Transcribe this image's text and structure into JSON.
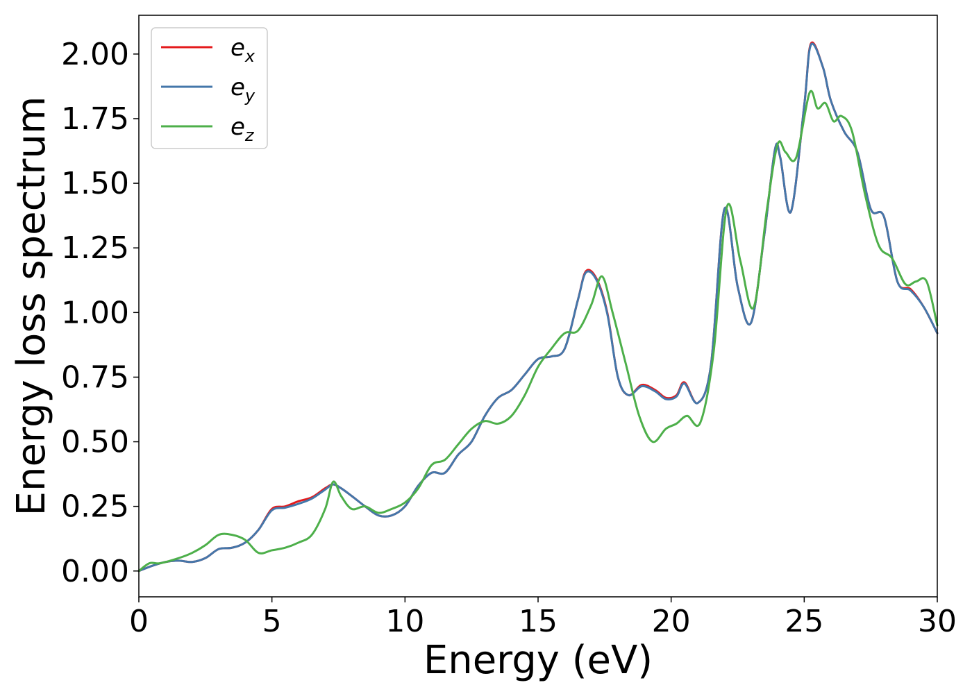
{
  "chart_data": {
    "type": "line",
    "title": "",
    "xlabel": "Energy (eV)",
    "ylabel": "Energy loss spectrum",
    "xlim": [
      0,
      30
    ],
    "ylim": [
      -0.1,
      2.15
    ],
    "xticks": [
      0,
      5,
      10,
      15,
      20,
      25,
      30
    ],
    "xtick_labels": [
      "0",
      "5",
      "10",
      "15",
      "20",
      "25",
      "30"
    ],
    "yticks": [
      0.0,
      0.25,
      0.5,
      0.75,
      1.0,
      1.25,
      1.5,
      1.75,
      2.0
    ],
    "ytick_labels": [
      "0.00",
      "0.25",
      "0.50",
      "0.75",
      "1.00",
      "1.25",
      "1.50",
      "1.75",
      "2.00"
    ],
    "grid": false,
    "legend_position": "top-left",
    "series": [
      {
        "name": "e_x",
        "legend_base": "e",
        "legend_sub": "x",
        "color": "#e41a1c",
        "x": [
          0,
          0.5,
          1,
          1.5,
          2,
          2.5,
          3,
          3.5,
          4,
          4.5,
          5,
          5.5,
          6,
          6.5,
          7,
          7.3,
          7.6,
          8,
          8.5,
          9,
          9.5,
          10,
          10.5,
          11,
          11.5,
          12,
          12.5,
          13,
          13.5,
          14,
          14.5,
          15,
          15.5,
          16,
          16.5,
          16.8,
          17.2,
          17.6,
          18,
          18.4,
          18.9,
          19.4,
          19.8,
          20.2,
          20.5,
          21,
          21.5,
          22,
          22.5,
          23,
          23.5,
          23.9,
          24.1,
          24.5,
          25,
          25.25,
          25.7,
          26,
          26.5,
          27,
          27.5,
          28,
          28.5,
          29,
          29.5,
          30
        ],
        "y": [
          0.0,
          0.02,
          0.035,
          0.04,
          0.035,
          0.05,
          0.085,
          0.09,
          0.11,
          0.16,
          0.24,
          0.25,
          0.27,
          0.285,
          0.32,
          0.335,
          0.32,
          0.29,
          0.25,
          0.215,
          0.215,
          0.25,
          0.33,
          0.38,
          0.38,
          0.45,
          0.5,
          0.6,
          0.67,
          0.7,
          0.76,
          0.82,
          0.83,
          0.86,
          1.05,
          1.16,
          1.13,
          1.0,
          0.75,
          0.68,
          0.72,
          0.7,
          0.67,
          0.68,
          0.73,
          0.65,
          0.8,
          1.4,
          1.1,
          0.96,
          1.3,
          1.63,
          1.6,
          1.39,
          1.8,
          2.04,
          1.95,
          1.82,
          1.7,
          1.62,
          1.4,
          1.37,
          1.12,
          1.09,
          1.02,
          0.92
        ]
      },
      {
        "name": "e_y",
        "legend_base": "e",
        "legend_sub": "y",
        "color": "#4477aa",
        "x": [
          0,
          0.5,
          1,
          1.5,
          2,
          2.5,
          3,
          3.5,
          4,
          4.5,
          5,
          5.5,
          6,
          6.5,
          7,
          7.3,
          7.6,
          8,
          8.5,
          9,
          9.5,
          10,
          10.5,
          11,
          11.5,
          12,
          12.5,
          13,
          13.5,
          14,
          14.5,
          15,
          15.5,
          16,
          16.5,
          16.8,
          17.2,
          17.6,
          18,
          18.4,
          18.9,
          19.4,
          19.8,
          20.2,
          20.5,
          21,
          21.5,
          22,
          22.5,
          23,
          23.5,
          23.9,
          24.1,
          24.5,
          25,
          25.25,
          25.7,
          26,
          26.5,
          27,
          27.5,
          28,
          28.5,
          29,
          29.5,
          30
        ],
        "y": [
          0.0,
          0.02,
          0.035,
          0.04,
          0.035,
          0.05,
          0.085,
          0.09,
          0.11,
          0.16,
          0.235,
          0.245,
          0.26,
          0.28,
          0.315,
          0.335,
          0.32,
          0.29,
          0.25,
          0.215,
          0.215,
          0.25,
          0.33,
          0.38,
          0.38,
          0.45,
          0.5,
          0.6,
          0.67,
          0.7,
          0.76,
          0.82,
          0.83,
          0.86,
          1.05,
          1.155,
          1.125,
          0.995,
          0.75,
          0.68,
          0.715,
          0.695,
          0.665,
          0.675,
          0.725,
          0.65,
          0.8,
          1.4,
          1.1,
          0.96,
          1.3,
          1.63,
          1.6,
          1.39,
          1.8,
          2.035,
          1.95,
          1.82,
          1.7,
          1.62,
          1.4,
          1.37,
          1.12,
          1.085,
          1.02,
          0.92
        ]
      },
      {
        "name": "e_z",
        "legend_base": "e",
        "legend_sub": "z",
        "color": "#4daf4a",
        "x": [
          0,
          0.4,
          0.8,
          1.5,
          2,
          2.5,
          3,
          3.5,
          4,
          4.5,
          5,
          5.5,
          6,
          6.5,
          7,
          7.3,
          7.6,
          8,
          8.5,
          9,
          9.5,
          10,
          10.5,
          11,
          11.5,
          12,
          12.5,
          13,
          13.5,
          14,
          14.5,
          15,
          15.5,
          16,
          16.5,
          17,
          17.4,
          17.8,
          18.3,
          18.8,
          19.3,
          19.8,
          20.2,
          20.6,
          21.1,
          21.6,
          22.1,
          22.6,
          23.1,
          23.6,
          24,
          24.3,
          24.7,
          25.2,
          25.5,
          25.8,
          26.1,
          26.4,
          26.8,
          27.3,
          27.8,
          28.3,
          28.8,
          29.2,
          29.6,
          30
        ],
        "y": [
          0.0,
          0.03,
          0.03,
          0.05,
          0.07,
          0.1,
          0.14,
          0.14,
          0.12,
          0.07,
          0.08,
          0.09,
          0.11,
          0.14,
          0.24,
          0.345,
          0.29,
          0.24,
          0.25,
          0.225,
          0.24,
          0.265,
          0.32,
          0.41,
          0.43,
          0.49,
          0.55,
          0.58,
          0.57,
          0.6,
          0.68,
          0.79,
          0.86,
          0.92,
          0.93,
          1.03,
          1.14,
          1.0,
          0.8,
          0.6,
          0.5,
          0.55,
          0.57,
          0.6,
          0.575,
          0.85,
          1.41,
          1.2,
          1.02,
          1.4,
          1.65,
          1.62,
          1.6,
          1.85,
          1.79,
          1.81,
          1.74,
          1.76,
          1.7,
          1.45,
          1.26,
          1.21,
          1.11,
          1.12,
          1.12,
          0.95
        ]
      }
    ]
  }
}
